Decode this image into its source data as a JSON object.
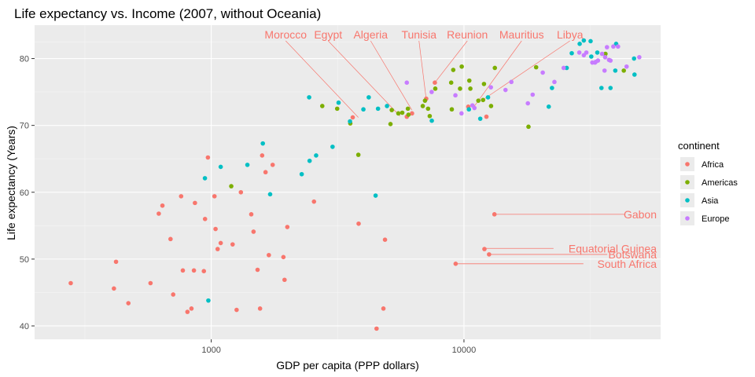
{
  "chart_data": {
    "type": "scatter",
    "title": "Life expectancy vs. Income (2007, without Oceania)",
    "xlabel": "GDP per capita (PPP dollars)",
    "ylabel": "Life expectancy (Years)",
    "x_scale": "log10",
    "xlim": [
      200,
      60000
    ],
    "ylim": [
      38,
      85
    ],
    "x_ticks": [
      1000,
      10000
    ],
    "x_tick_labels": [
      "1000",
      "10000"
    ],
    "y_ticks": [
      40,
      50,
      60,
      70,
      80
    ],
    "y_tick_labels": [
      "40",
      "50",
      "60",
      "70",
      "80"
    ],
    "grid": true,
    "legend": {
      "title": "continent",
      "position": "right",
      "entries": [
        {
          "name": "Africa",
          "color": "#F8766D"
        },
        {
          "name": "Americas",
          "color": "#7CAE00"
        },
        {
          "name": "Asia",
          "color": "#00BFC4"
        },
        {
          "name": "Europe",
          "color": "#C77CFF"
        }
      ]
    },
    "series": [
      {
        "name": "Africa",
        "color": "#F8766D",
        "points": [
          [
            278,
            46.4
          ],
          [
            420,
            49.6
          ],
          [
            412,
            45.6
          ],
          [
            470,
            43.4
          ],
          [
            575,
            46.4
          ],
          [
            620,
            56.8
          ],
          [
            641,
            58
          ],
          [
            690,
            53
          ],
          [
            707,
            44.7
          ],
          [
            760,
            59.4
          ],
          [
            772,
            48.3
          ],
          [
            805,
            42.1
          ],
          [
            835,
            42.6
          ],
          [
            854,
            48.3
          ],
          [
            862,
            58.4
          ],
          [
            935,
            48.2
          ],
          [
            945,
            56
          ],
          [
            970,
            65.2
          ],
          [
            1030,
            59.4
          ],
          [
            1040,
            54.5
          ],
          [
            1060,
            51.5
          ],
          [
            1090,
            52.4
          ],
          [
            1215,
            52.2
          ],
          [
            1260,
            42.4
          ],
          [
            1310,
            60
          ],
          [
            1440,
            56.7
          ],
          [
            1470,
            54.1
          ],
          [
            1525,
            48.4
          ],
          [
            1560,
            42.6
          ],
          [
            1590,
            65.5
          ],
          [
            1640,
            63
          ],
          [
            1690,
            50.6
          ],
          [
            1750,
            64.1
          ],
          [
            1930,
            50.3
          ],
          [
            1950,
            46.9
          ],
          [
            2000,
            54.8
          ],
          [
            2550,
            58.6
          ],
          [
            3630,
            71.2
          ],
          [
            3830,
            55.3
          ],
          [
            4510,
            39.6
          ],
          [
            4800,
            42.6
          ],
          [
            4870,
            52.9
          ],
          [
            5940,
            71.3
          ],
          [
            6230,
            71.8
          ],
          [
            7090,
            74
          ],
          [
            7670,
            76.4
          ],
          [
            10400,
            72.8
          ],
          [
            12050,
            51.5
          ],
          [
            12270,
            71.3
          ],
          [
            12570,
            50.7
          ],
          [
            13200,
            56.7
          ],
          [
            9270,
            49.3
          ]
        ]
      },
      {
        "name": "Americas",
        "color": "#7CAE00",
        "points": [
          [
            1200,
            60.9
          ],
          [
            3550,
            70.3
          ],
          [
            3820,
            65.6
          ],
          [
            2750,
            72.9
          ],
          [
            3150,
            72.5
          ],
          [
            5120,
            70.2
          ],
          [
            5180,
            72.3
          ],
          [
            6030,
            71.6
          ],
          [
            6870,
            72.9
          ],
          [
            7010,
            73.7
          ],
          [
            7210,
            72.5
          ],
          [
            7320,
            71.4
          ],
          [
            7700,
            75.5
          ],
          [
            8950,
            72.4
          ],
          [
            9650,
            75.5
          ],
          [
            9070,
            78.3
          ],
          [
            9800,
            78.8
          ],
          [
            10600,
            75.5
          ],
          [
            11400,
            73.7
          ],
          [
            12000,
            76.2
          ],
          [
            12800,
            72.9
          ],
          [
            13250,
            78.6
          ],
          [
            18000,
            69.8
          ],
          [
            19300,
            78.7
          ],
          [
            36300,
            80.7
          ],
          [
            42900,
            78.2
          ],
          [
            5700,
            71.9
          ],
          [
            6000,
            72.5
          ],
          [
            5500,
            71.8
          ],
          [
            8900,
            76.4
          ],
          [
            10500,
            76.7
          ],
          [
            11900,
            73.8
          ]
        ]
      },
      {
        "name": "Asia",
        "color": "#00BFC4",
        "points": [
          [
            974,
            43.8
          ],
          [
            944,
            62.1
          ],
          [
            1090,
            63.8
          ],
          [
            1390,
            64.1
          ],
          [
            1600,
            67.3
          ],
          [
            1710,
            59.7
          ],
          [
            2280,
            62.7
          ],
          [
            2450,
            64.7
          ],
          [
            2600,
            65.5
          ],
          [
            3020,
            66.8
          ],
          [
            3190,
            73.4
          ],
          [
            3540,
            70.6
          ],
          [
            4000,
            72.4
          ],
          [
            4200,
            74.2
          ],
          [
            4470,
            59.5
          ],
          [
            4570,
            72.5
          ],
          [
            4960,
            72.9
          ],
          [
            2440,
            74.2
          ],
          [
            7460,
            70.7
          ],
          [
            10460,
            72.4
          ],
          [
            11600,
            71
          ],
          [
            12450,
            74.2
          ],
          [
            21650,
            72.8
          ],
          [
            22300,
            75.6
          ],
          [
            25500,
            78.6
          ],
          [
            26700,
            80.8
          ],
          [
            28700,
            82.2
          ],
          [
            31700,
            82.6
          ],
          [
            38000,
            75.6
          ],
          [
            39700,
            78.2
          ],
          [
            47300,
            77.6
          ],
          [
            47100,
            80
          ],
          [
            40000,
            82.2
          ],
          [
            31900,
            80.3
          ],
          [
            33700,
            80.9
          ],
          [
            29800,
            82.7
          ],
          [
            35000,
            75.6
          ]
        ]
      },
      {
        "name": "Europe",
        "color": "#C77CFF",
        "points": [
          [
            5940,
            76.4
          ],
          [
            7450,
            75
          ],
          [
            9250,
            74.5
          ],
          [
            9780,
            71.8
          ],
          [
            10800,
            73.0
          ],
          [
            11000,
            72.6
          ],
          [
            12780,
            75.7
          ],
          [
            14600,
            75.3
          ],
          [
            15400,
            76.5
          ],
          [
            17900,
            73.3
          ],
          [
            18700,
            74.6
          ],
          [
            20500,
            77.9
          ],
          [
            22800,
            76.5
          ],
          [
            24800,
            78.6
          ],
          [
            28600,
            80.9
          ],
          [
            29800,
            80.5
          ],
          [
            30500,
            80.9
          ],
          [
            32200,
            79.4
          ],
          [
            33200,
            79.5
          ],
          [
            33900,
            79.7
          ],
          [
            35200,
            80.7
          ],
          [
            36000,
            78.2
          ],
          [
            36800,
            81.7
          ],
          [
            37500,
            79.8
          ],
          [
            38000,
            79.7
          ],
          [
            39000,
            81.8
          ],
          [
            40700,
            81.8
          ],
          [
            33000,
            79.4
          ],
          [
            36200,
            80.2
          ],
          [
            44000,
            78.8
          ],
          [
            49400,
            80.2
          ]
        ]
      }
    ],
    "annotations": [
      {
        "label": "Morocco",
        "x": 3820,
        "y": 71.2,
        "color": "#F8766D",
        "label_align": "above"
      },
      {
        "label": "Egypt",
        "x": 5580,
        "y": 71.4,
        "color": "#F8766D",
        "label_align": "above"
      },
      {
        "label": "Algeria",
        "x": 6220,
        "y": 72.3,
        "color": "#F8766D",
        "label_align": "above"
      },
      {
        "label": "Tunisia",
        "x": 7090,
        "y": 73.9,
        "color": "#F8766D",
        "label_align": "above"
      },
      {
        "label": "Reunion",
        "x": 7670,
        "y": 76.4,
        "color": "#F8766D",
        "label_align": "above"
      },
      {
        "label": "Mauritius",
        "x": 10960,
        "y": 72.8,
        "color": "#F8766D",
        "label_align": "above"
      },
      {
        "label": "Libya",
        "x": 12060,
        "y": 74.0,
        "color": "#F8766D",
        "label_align": "above"
      },
      {
        "label": "Gabon",
        "x": 13200,
        "y": 56.7,
        "color": "#F8766D",
        "label_align": "right"
      },
      {
        "label": "Equatorial Guinea",
        "x": 12150,
        "y": 51.6,
        "color": "#F8766D",
        "label_align": "right"
      },
      {
        "label": "Botswana",
        "x": 12570,
        "y": 50.7,
        "color": "#F8766D",
        "label_align": "right"
      },
      {
        "label": "South Africa",
        "x": 9270,
        "y": 49.3,
        "color": "#F8766D",
        "label_align": "right"
      }
    ]
  }
}
